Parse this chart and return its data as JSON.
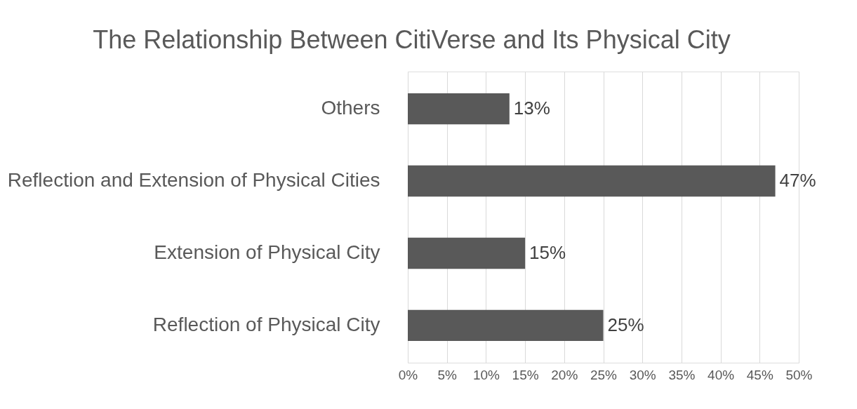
{
  "chart_data": {
    "type": "bar",
    "orientation": "horizontal",
    "title": "The Relationship Between CitiVerse and Its Physical City",
    "categories": [
      "Others",
      "Reflection and Extension of Physical Cities",
      "Extension of Physical City",
      "Reflection of Physical City"
    ],
    "values": [
      13,
      47,
      15,
      25
    ],
    "color": "#595959",
    "value_labels": [
      "13%",
      "47%",
      "15%",
      "25%"
    ],
    "xlim": [
      0,
      50
    ],
    "xticks": [
      {
        "value": 0,
        "label": "0%"
      },
      {
        "value": 5,
        "label": "5%"
      },
      {
        "value": 10,
        "label": "10%"
      },
      {
        "value": 15,
        "label": "15%"
      },
      {
        "value": 20,
        "label": "20%"
      },
      {
        "value": 25,
        "label": "25%"
      },
      {
        "value": 30,
        "label": "30%"
      },
      {
        "value": 35,
        "label": "35%"
      },
      {
        "value": 40,
        "label": "40%"
      },
      {
        "value": 45,
        "label": "45%"
      },
      {
        "value": 50,
        "label": "50%"
      }
    ],
    "grid": "x"
  }
}
